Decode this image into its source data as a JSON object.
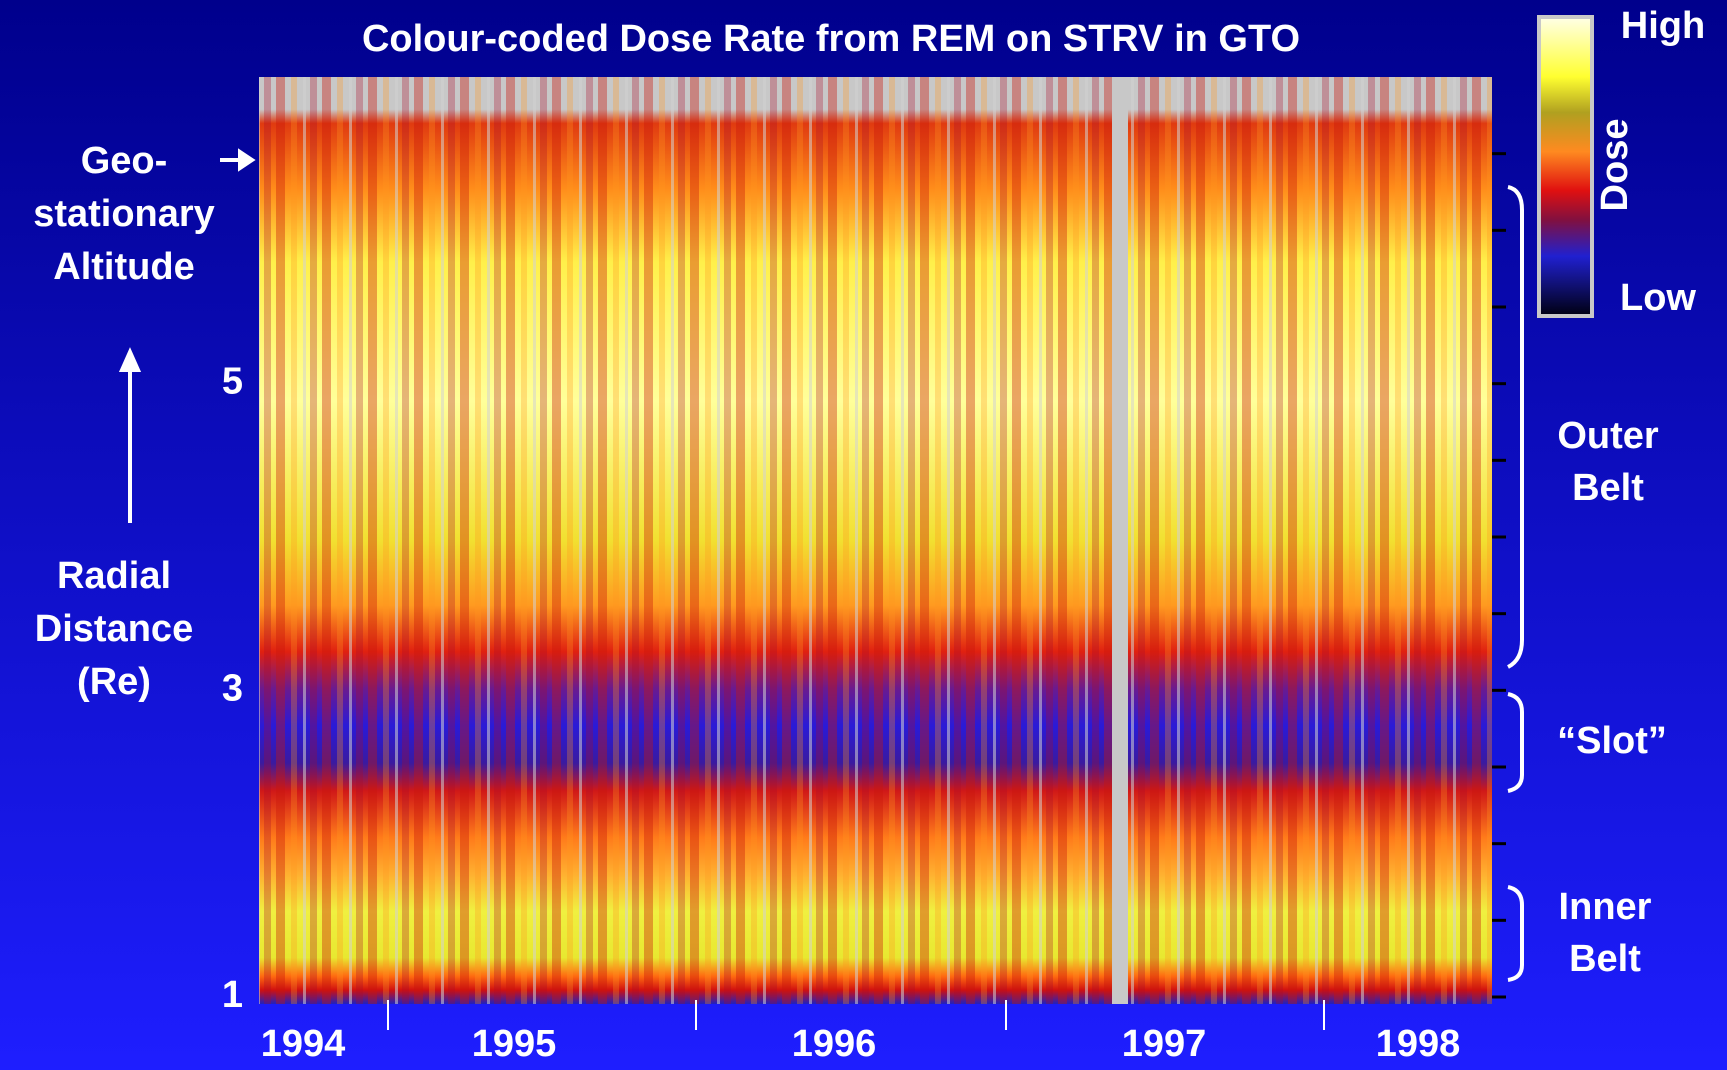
{
  "chart_data": {
    "type": "heatmap",
    "title": "Colour-coded Dose Rate from REM on STRV in GTO",
    "categories": [
      "1994",
      "1995",
      "1996",
      "1997",
      "1998"
    ],
    "ylim": [
      1,
      7
    ],
    "yticks": [
      1,
      3,
      5
    ],
    "minor_yticks": [
      1.5,
      2,
      2.5,
      3.5,
      4,
      4.5,
      5.5,
      6,
      6.5
    ],
    "y_label": [
      "Radial",
      "Distance",
      "(Re)"
    ],
    "annotations": {
      "geo": [
        "Geo-",
        "stationary",
        "Altitude"
      ],
      "outer": [
        "Outer",
        "Belt"
      ],
      "slot": "“Slot”",
      "inner": [
        "Inner",
        "Belt"
      ]
    },
    "colorbar": {
      "title": "Dose",
      "high": "High",
      "low": "Low"
    }
  }
}
